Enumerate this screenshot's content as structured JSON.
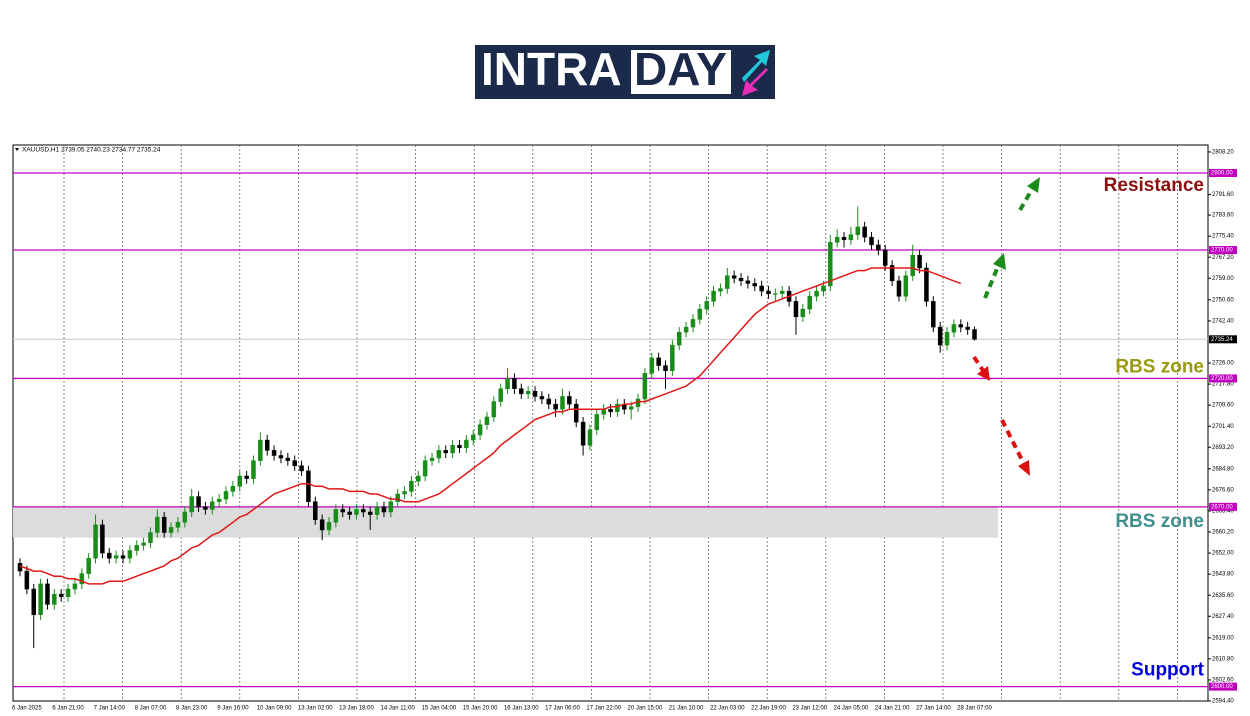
{
  "logo": {
    "text_left": "INTRA",
    "text_right": "DAY"
  },
  "chart_data": {
    "type": "candlestick",
    "header": "XAUUSD,H1  2739.05 2740.23 2734.77 2735.24",
    "categories": [
      null,
      "6 Jan 2025",
      null,
      null,
      null,
      null,
      null,
      "6 Jan 21:00",
      null,
      null,
      null,
      null,
      null,
      "7 Jan 14:00",
      null,
      null,
      null,
      null,
      null,
      "8 Jan 07:00",
      null,
      null,
      null,
      null,
      null,
      "8 Jan 23:00",
      null,
      null,
      null,
      null,
      null,
      "9 Jan 16:00",
      null,
      null,
      null,
      null,
      null,
      "10 Jan 09:00",
      null,
      null,
      null,
      null,
      null,
      "13 Jan 02:00",
      null,
      null,
      null,
      null,
      null,
      "13 Jan 18:00",
      null,
      null,
      null,
      null,
      null,
      "14 Jan 11:00",
      null,
      null,
      null,
      null,
      null,
      "15 Jan 04:00",
      null,
      null,
      null,
      null,
      null,
      "15 Jan 20:00",
      null,
      null,
      null,
      null,
      null,
      "16 Jan 13:00",
      null,
      null,
      null,
      null,
      null,
      "17 Jan 06:00",
      null,
      null,
      null,
      null,
      null,
      "17 Jan 22:00",
      null,
      null,
      null,
      null,
      null,
      "20 Jan 15:00",
      null,
      null,
      null,
      null,
      null,
      "21 Jan 10:00",
      null,
      null,
      null,
      null,
      null,
      "22 Jan 03:00",
      null,
      null,
      null,
      null,
      null,
      "22 Jan 19:00",
      null,
      null,
      null,
      null,
      null,
      "23 Jan 12:00",
      null,
      null,
      null,
      null,
      null,
      "24 Jan 05:00",
      null,
      null,
      null,
      null,
      null,
      "24 Jan 21:00",
      null,
      null,
      null,
      null,
      null,
      "27 Jan 14:00",
      null,
      null,
      null,
      null,
      null,
      "28 Jan 07:00"
    ],
    "ohlc": [
      [
        2648,
        2650,
        2643,
        2645
      ],
      [
        2645,
        2647,
        2636,
        2638
      ],
      [
        2638,
        2640,
        2615,
        2628
      ],
      [
        2628,
        2642,
        2626,
        2640
      ],
      [
        2640,
        2642,
        2630,
        2632
      ],
      [
        2632,
        2638,
        2630,
        2636
      ],
      [
        2636,
        2638,
        2633,
        2635
      ],
      [
        2635,
        2640,
        2633,
        2638
      ],
      [
        2638,
        2642,
        2636,
        2640
      ],
      [
        2640,
        2646,
        2638,
        2644
      ],
      [
        2644,
        2652,
        2642,
        2650
      ],
      [
        2650,
        2667,
        2648,
        2663
      ],
      [
        2663,
        2665,
        2650,
        2652
      ],
      [
        2652,
        2654,
        2648,
        2650
      ],
      [
        2650,
        2653,
        2648,
        2651
      ],
      [
        2651,
        2653,
        2648,
        2650
      ],
      [
        2650,
        2655,
        2648,
        2653
      ],
      [
        2653,
        2657,
        2651,
        2655
      ],
      [
        2655,
        2658,
        2653,
        2656
      ],
      [
        2656,
        2662,
        2654,
        2660
      ],
      [
        2660,
        2669,
        2658,
        2666
      ],
      [
        2666,
        2668,
        2658,
        2660
      ],
      [
        2660,
        2664,
        2658,
        2662
      ],
      [
        2662,
        2666,
        2660,
        2664
      ],
      [
        2664,
        2670,
        2662,
        2668
      ],
      [
        2668,
        2677,
        2666,
        2674
      ],
      [
        2674,
        2676,
        2668,
        2670
      ],
      [
        2670,
        2672,
        2667,
        2669
      ],
      [
        2669,
        2674,
        2667,
        2672
      ],
      [
        2672,
        2675,
        2670,
        2673
      ],
      [
        2673,
        2678,
        2671,
        2676
      ],
      [
        2676,
        2680,
        2674,
        2678
      ],
      [
        2678,
        2684,
        2676,
        2682
      ],
      [
        2682,
        2684,
        2679,
        2681
      ],
      [
        2681,
        2690,
        2679,
        2688
      ],
      [
        2688,
        2699,
        2686,
        2696
      ],
      [
        2696,
        2698,
        2690,
        2692
      ],
      [
        2692,
        2694,
        2688,
        2690
      ],
      [
        2690,
        2692,
        2687,
        2689
      ],
      [
        2689,
        2691,
        2686,
        2688
      ],
      [
        2688,
        2690,
        2684,
        2686
      ],
      [
        2686,
        2688,
        2682,
        2684
      ],
      [
        2684,
        2686,
        2670,
        2672
      ],
      [
        2672,
        2674,
        2663,
        2665
      ],
      [
        2665,
        2667,
        2657,
        2661
      ],
      [
        2661,
        2666,
        2659,
        2664
      ],
      [
        2664,
        2671,
        2662,
        2669
      ],
      [
        2669,
        2671,
        2666,
        2668
      ],
      [
        2668,
        2670,
        2665,
        2667
      ],
      [
        2667,
        2671,
        2665,
        2669
      ],
      [
        2669,
        2671,
        2666,
        2668
      ],
      [
        2668,
        2670,
        2661,
        2667
      ],
      [
        2667,
        2672,
        2665,
        2670
      ],
      [
        2670,
        2672,
        2666,
        2668
      ],
      [
        2668,
        2674,
        2666,
        2672
      ],
      [
        2672,
        2677,
        2670,
        2675
      ],
      [
        2675,
        2678,
        2673,
        2676
      ],
      [
        2676,
        2682,
        2674,
        2680
      ],
      [
        2680,
        2684,
        2678,
        2682
      ],
      [
        2682,
        2690,
        2680,
        2688
      ],
      [
        2688,
        2691,
        2686,
        2689
      ],
      [
        2689,
        2694,
        2687,
        2692
      ],
      [
        2692,
        2694,
        2689,
        2691
      ],
      [
        2691,
        2696,
        2689,
        2694
      ],
      [
        2694,
        2696,
        2691,
        2693
      ],
      [
        2693,
        2698,
        2691,
        2696
      ],
      [
        2696,
        2700,
        2694,
        2698
      ],
      [
        2698,
        2704,
        2696,
        2702
      ],
      [
        2702,
        2707,
        2700,
        2705
      ],
      [
        2705,
        2713,
        2703,
        2711
      ],
      [
        2711,
        2718,
        2709,
        2716
      ],
      [
        2716,
        2724,
        2714,
        2720
      ],
      [
        2720,
        2722,
        2714,
        2716
      ],
      [
        2716,
        2718,
        2712,
        2714
      ],
      [
        2714,
        2717,
        2712,
        2715
      ],
      [
        2715,
        2717,
        2711,
        2713
      ],
      [
        2713,
        2715,
        2710,
        2712
      ],
      [
        2712,
        2714,
        2708,
        2710
      ],
      [
        2710,
        2712,
        2705,
        2708
      ],
      [
        2708,
        2716,
        2706,
        2713
      ],
      [
        2713,
        2715,
        2708,
        2710
      ],
      [
        2710,
        2712,
        2701,
        2703
      ],
      [
        2703,
        2705,
        2690,
        2694
      ],
      [
        2694,
        2702,
        2692,
        2700
      ],
      [
        2700,
        2708,
        2698,
        2706
      ],
      [
        2706,
        2710,
        2704,
        2708
      ],
      [
        2708,
        2710,
        2705,
        2707
      ],
      [
        2707,
        2712,
        2705,
        2710
      ],
      [
        2710,
        2712,
        2706,
        2708
      ],
      [
        2708,
        2711,
        2704,
        2709
      ],
      [
        2709,
        2714,
        2707,
        2712
      ],
      [
        2712,
        2724,
        2710,
        2722
      ],
      [
        2722,
        2730,
        2720,
        2728
      ],
      [
        2728,
        2730,
        2723,
        2725
      ],
      [
        2725,
        2727,
        2716,
        2723
      ],
      [
        2723,
        2735,
        2721,
        2733
      ],
      [
        2733,
        2740,
        2731,
        2738
      ],
      [
        2738,
        2742,
        2736,
        2740
      ],
      [
        2740,
        2745,
        2738,
        2743
      ],
      [
        2743,
        2749,
        2741,
        2747
      ],
      [
        2747,
        2752,
        2745,
        2750
      ],
      [
        2750,
        2756,
        2748,
        2754
      ],
      [
        2754,
        2757,
        2752,
        2755
      ],
      [
        2755,
        2763,
        2753,
        2760
      ],
      [
        2760,
        2762,
        2757,
        2759
      ],
      [
        2759,
        2761,
        2756,
        2758
      ],
      [
        2758,
        2760,
        2755,
        2757
      ],
      [
        2757,
        2759,
        2754,
        2756
      ],
      [
        2756,
        2758,
        2752,
        2754
      ],
      [
        2754,
        2756,
        2751,
        2753
      ],
      [
        2753,
        2755,
        2750,
        2753
      ],
      [
        2753,
        2756,
        2751,
        2754
      ],
      [
        2754,
        2756,
        2748,
        2750
      ],
      [
        2750,
        2752,
        2737,
        2744
      ],
      [
        2744,
        2749,
        2742,
        2747
      ],
      [
        2747,
        2754,
        2745,
        2752
      ],
      [
        2752,
        2756,
        2750,
        2754
      ],
      [
        2754,
        2758,
        2752,
        2756
      ],
      [
        2756,
        2776,
        2754,
        2773
      ],
      [
        2773,
        2778,
        2771,
        2775
      ],
      [
        2775,
        2777,
        2771,
        2774
      ],
      [
        2774,
        2779,
        2772,
        2776
      ],
      [
        2776,
        2787,
        2774,
        2779
      ],
      [
        2779,
        2781,
        2773,
        2775
      ],
      [
        2775,
        2777,
        2770,
        2772
      ],
      [
        2772,
        2774,
        2768,
        2770
      ],
      [
        2770,
        2772,
        2762,
        2764
      ],
      [
        2764,
        2766,
        2756,
        2758
      ],
      [
        2758,
        2760,
        2750,
        2752
      ],
      [
        2752,
        2762,
        2750,
        2760
      ],
      [
        2760,
        2772,
        2758,
        2768
      ],
      [
        2768,
        2770,
        2761,
        2763
      ],
      [
        2763,
        2765,
        2748,
        2750
      ],
      [
        2750,
        2752,
        2738,
        2740
      ],
      [
        2740,
        2742,
        2730,
        2733
      ],
      [
        2733,
        2740,
        2731,
        2738
      ],
      [
        2738,
        2743,
        2736,
        2741
      ],
      [
        2741,
        2743,
        2738,
        2740
      ],
      [
        2740,
        2742,
        2737,
        2739.05
      ],
      [
        2739.05,
        2740.23,
        2734.77,
        2735.24
      ]
    ],
    "ma": [
      2647,
      2646,
      2645,
      2645,
      2644,
      2643,
      2643,
      2642,
      2642,
      2641,
      2640,
      2640,
      2640,
      2641,
      2641,
      2641,
      2642,
      2643,
      2644,
      2645,
      2646,
      2647,
      2649,
      2650,
      2652,
      2654,
      2655,
      2657,
      2659,
      2660,
      2662,
      2664,
      2666,
      2667,
      2669,
      2671,
      2673,
      2675,
      2676,
      2677,
      2678,
      2679,
      2679,
      2678,
      2678,
      2677,
      2677,
      2677,
      2676,
      2676,
      2676,
      2675,
      2675,
      2674,
      2673,
      2673,
      2672,
      2672,
      2672,
      2673,
      2674,
      2675,
      2677,
      2679,
      2681,
      2683,
      2685,
      2687,
      2689,
      2691,
      2694,
      2696,
      2698,
      2700,
      2702,
      2704,
      2705,
      2706,
      2707,
      2707,
      2708,
      2708,
      2708,
      2708,
      2708,
      2708,
      2709,
      2709,
      2710,
      2710,
      2711,
      2711,
      2712,
      2713,
      2714,
      2715,
      2716,
      2717,
      2719,
      2721,
      2724,
      2727,
      2730,
      2733,
      2736,
      2739,
      2742,
      2745,
      2747,
      2749,
      2750,
      2751,
      2752,
      2753,
      2754,
      2755,
      2756,
      2757,
      2758,
      2759,
      2760,
      2761,
      2762,
      2762,
      2763,
      2763,
      2763,
      2763,
      2763,
      2763,
      2763,
      2762,
      2762,
      2761,
      2760,
      2759,
      2758,
      2757,
      null,
      null
    ],
    "up_color": "#1a8c1a",
    "down_color": "#000000",
    "ma_color": "#e01818",
    "level_color": "#c000c0",
    "zone_color": "#dcdcdc",
    "ylim": [
      2594.4,
      2810.9
    ],
    "yticks": [
      {
        "value": 2808.2,
        "label": "2808.20"
      },
      {
        "value": 2791.6,
        "label": "2791.60"
      },
      {
        "value": 2783.6,
        "label": "2783.60"
      },
      {
        "value": 2775.4,
        "label": "2775.40"
      },
      {
        "value": 2767.2,
        "label": "2767.20"
      },
      {
        "value": 2759,
        "label": "2759.00"
      },
      {
        "value": 2750.6,
        "label": "2750.60"
      },
      {
        "value": 2742.4,
        "label": "2742.40"
      },
      {
        "value": 2726,
        "label": "2726.00"
      },
      {
        "value": 2717.8,
        "label": "2717.80"
      },
      {
        "value": 2709.6,
        "label": "2709.60"
      },
      {
        "value": 2701.4,
        "label": "2701.40"
      },
      {
        "value": 2693.2,
        "label": "2693.20"
      },
      {
        "value": 2684.8,
        "label": "2684.80"
      },
      {
        "value": 2676.6,
        "label": "2676.60"
      },
      {
        "value": 2668.4,
        "label": "2668.40"
      },
      {
        "value": 2660.2,
        "label": "2660.20"
      },
      {
        "value": 2652,
        "label": "2652.00"
      },
      {
        "value": 2643.8,
        "label": "2643.80"
      },
      {
        "value": 2635.6,
        "label": "2635.60"
      },
      {
        "value": 2627.4,
        "label": "2627.40"
      },
      {
        "value": 2619,
        "label": "2619.00"
      },
      {
        "value": 2610.8,
        "label": "2610.80"
      },
      {
        "value": 2602.6,
        "label": "2602.60"
      },
      {
        "value": 2594.4,
        "label": "2594.40"
      }
    ],
    "levels": [
      {
        "value": 2800,
        "label": "2800.00",
        "note": "Resistance",
        "note_color": "#8b1010"
      },
      {
        "value": 2770,
        "label": "2770.00"
      },
      {
        "value": 2720,
        "label": "2720.00",
        "note": "RBS zone",
        "note_color": "#9a9a10"
      },
      {
        "value": 2670,
        "label": "2670.00",
        "note": "RBS zone",
        "note_color": "#3f8f8f"
      },
      {
        "value": 2600,
        "label": "2600.00",
        "note": "Support",
        "note_color": "#0000dd"
      }
    ],
    "zone": [
      2658,
      2670
    ],
    "current": {
      "value": 2735.24,
      "label": "2735.24"
    }
  }
}
